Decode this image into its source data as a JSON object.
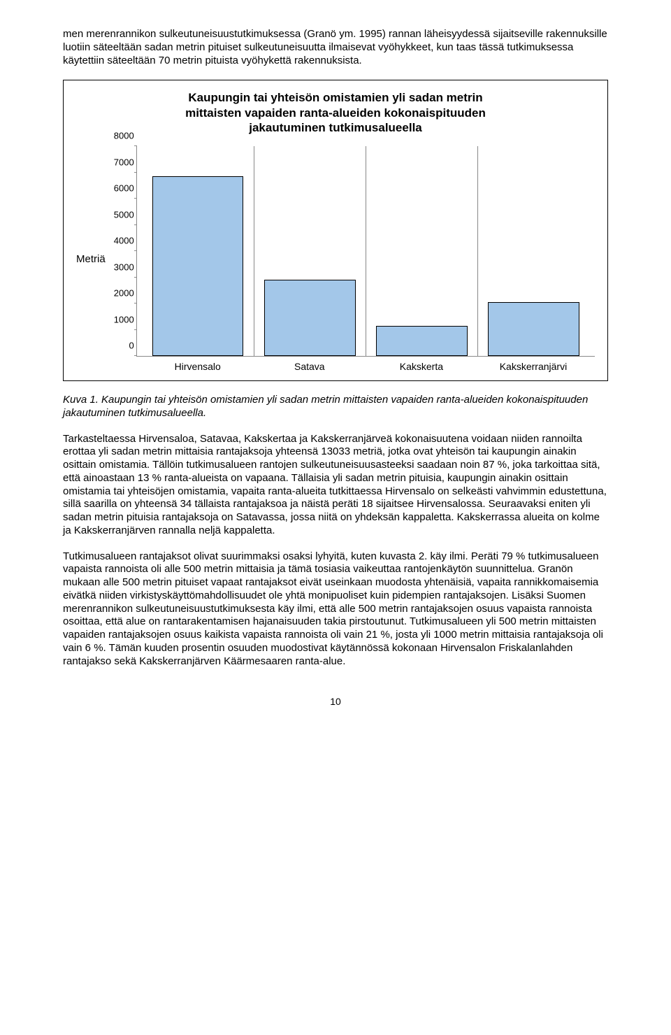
{
  "para1": "men merenrannikon sulkeutuneisuustutkimuksessa (Granö ym. 1995) rannan läheisyydessä sijaitseville rakennuksille luotiin säteeltään sadan metrin pituiset sulkeutuneisuutta ilmaisevat vyöhykkeet, kun taas tässä tutkimuksessa käytettiin säteeltään 70 metrin pituista vyöhykettä rakennuksista.",
  "chart": {
    "title_l1": "Kaupungin tai yhteisön omistamien yli sadan metrin",
    "title_l2": "mittaisten vapaiden ranta-alueiden kokonaispituuden",
    "title_l3": "jakautuminen tutkimusalueella",
    "ylabel": "Metriä",
    "ymax": 8000,
    "yticks": [
      0,
      1000,
      2000,
      3000,
      4000,
      5000,
      6000,
      7000,
      8000
    ],
    "categories": [
      "Hirvensalo",
      "Satava",
      "Kakskerta",
      "Kakskerranjärvi"
    ],
    "values": [
      6850,
      2900,
      1150,
      2050
    ],
    "bar_color": "#a3c7e9",
    "bar_border": "#000000"
  },
  "caption": "Kuva 1. Kaupungin tai yhteisön omistamien yli sadan metrin mittaisten vapaiden ranta-alueiden kokonaispituuden jakautuminen tutkimusalueella.",
  "para2": "Tarkasteltaessa Hirvensaloa, Satavaa, Kakskertaa ja Kakskerranjärveä kokonaisuutena voidaan niiden rannoilta erottaa yli sadan metrin mittaisia rantajaksoja yhteensä 13033 metriä, jotka ovat yhteisön tai kaupungin ainakin osittain omistamia. Tällöin tutkimusalueen rantojen sulkeutuneisuusasteeksi saadaan noin 87 %, joka tarkoittaa sitä, että ainoastaan 13 % ranta-alueista on vapaana. Tällaisia yli sadan metrin pituisia, kaupungin ainakin osittain omistamia tai yhteisöjen omistamia, vapaita ranta-alueita tutkittaessa Hirvensalo on selkeästi vahvimmin edustettuna, sillä saarilla on yhteensä 34 tällaista rantajaksoa ja näistä peräti 18 sijaitsee Hirvensalossa. Seuraavaksi eniten yli sadan metrin pituisia rantajaksoja on Satavassa, jossa niitä on yhdeksän kappaletta. Kakskerrassa alueita on kolme ja Kakskerranjärven rannalla neljä kappaletta.",
  "para3": "Tutkimusalueen rantajaksot olivat suurimmaksi osaksi lyhyitä, kuten kuvasta 2. käy ilmi. Peräti 79 % tutkimusalueen vapaista rannoista oli alle 500 metrin mittaisia ja tämä tosiasia vaikeuttaa rantojenkäytön suunnittelua. Granön mukaan alle 500 metrin pituiset vapaat rantajaksot eivät useinkaan muodosta yhtenäisiä, vapaita rannikkomaisemia eivätkä niiden virkistyskäyttömahdollisuudet ole yhtä monipuoliset kuin pidempien rantajaksojen. Lisäksi Suomen merenrannikon sulkeutuneisuustutkimuksesta käy ilmi, että alle 500 metrin rantajaksojen osuus vapaista rannoista osoittaa, että alue on rantarakentamisen hajanaisuuden takia pirstoutunut. Tutkimusalueen yli 500 metrin mittaisten vapaiden rantajaksojen osuus kaikista vapaista rannoista oli vain 21 %, josta yli 1000 metrin mittaisia rantajaksoja oli vain 6 %. Tämän kuuden prosentin osuuden muodostivat käytännössä kokonaan Hirvensalon Friskalanlahden rantajakso sekä Kakskerranjärven Käärmesaaren ranta-alue.",
  "pagenum": "10"
}
